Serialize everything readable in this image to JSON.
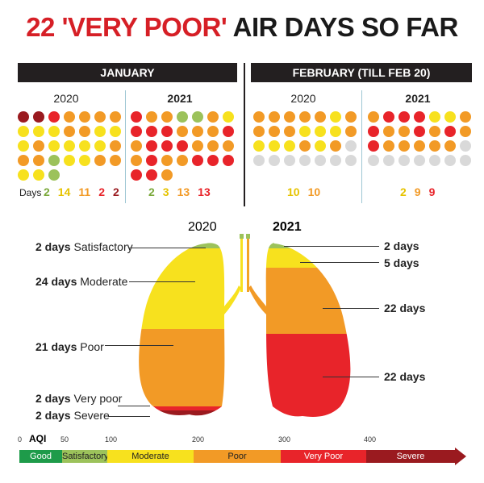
{
  "title": {
    "part1": "22 'VERY POOR'",
    "part2": "AIR DAYS SO FAR"
  },
  "colors": {
    "good": "#1e9b4a",
    "satisfactory": "#9cc25b",
    "moderate": "#f7e11e",
    "poor": "#f29a26",
    "very_poor": "#e8242a",
    "severe": "#9a1a1f",
    "empty": "#d9d9d9"
  },
  "january": {
    "header": "JANUARY",
    "y2020": {
      "label": "2020"
    },
    "y2021": {
      "label": "2021"
    },
    "days_label": "Days",
    "counts_2020": [
      {
        "v": "2",
        "c": "satisfactory"
      },
      {
        "v": "14",
        "c": "moderate"
      },
      {
        "v": "11",
        "c": "poor"
      },
      {
        "v": "2",
        "c": "very_poor"
      },
      {
        "v": "2",
        "c": "severe"
      }
    ],
    "counts_2021": [
      {
        "v": "2",
        "c": "satisfactory"
      },
      {
        "v": "3",
        "c": "moderate"
      },
      {
        "v": "13",
        "c": "poor"
      },
      {
        "v": "13",
        "c": "very_poor"
      }
    ]
  },
  "february": {
    "header": "FEBRUARY (TILL FEB 20)",
    "y2020": {
      "label": "2020"
    },
    "y2021": {
      "label": "2021"
    },
    "counts_2020": [
      {
        "v": "10",
        "c": "moderate"
      },
      {
        "v": "10",
        "c": "poor"
      }
    ],
    "counts_2021": [
      {
        "v": "2",
        "c": "moderate"
      },
      {
        "v": "9",
        "c": "poor"
      },
      {
        "v": "9",
        "c": "very_poor"
      }
    ]
  },
  "lungs": {
    "year_left": "2020",
    "year_right": "2021",
    "left_labels": [
      {
        "bold": "2 days",
        "text": "Satisfactory"
      },
      {
        "bold": "24 days",
        "text": "Moderate"
      },
      {
        "bold": "21 days",
        "text": "Poor"
      },
      {
        "bold": "2 days",
        "text": "Very poor"
      },
      {
        "bold": "2 days",
        "text": "Severe"
      }
    ],
    "right_labels": [
      "2 days",
      "5 days",
      "22 days",
      "22 days"
    ]
  },
  "scale": {
    "aqi_label": "AQI",
    "ticks": [
      "0",
      "50",
      "100",
      "200",
      "300",
      "400"
    ],
    "bands": [
      "Good",
      "Satisfactory",
      "Moderate",
      "Poor",
      "Very Poor",
      "Severe"
    ]
  }
}
